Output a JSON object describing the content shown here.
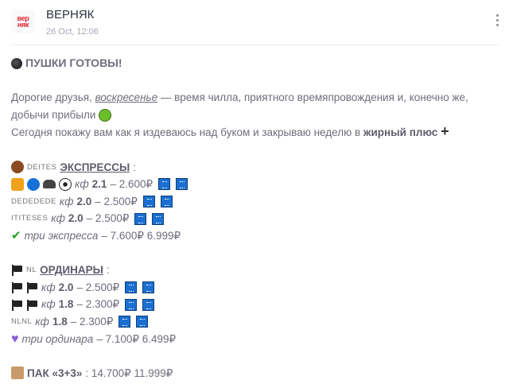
{
  "header": {
    "avatar_text": [
      "вер",
      "няк"
    ],
    "channel_name": "ВЕРНЯК",
    "timestamp": "26 Oct, 12:06"
  },
  "post": {
    "title": "ПУШКИ ГОТОВЫ!",
    "intro": {
      "p1_a": "Дорогие друзья, ",
      "p1_link": "воскресенье",
      "p1_b": " — время чилла, приятного времяпровождения и, конечно же, добычи прибыли",
      "p2_a": "Сегодня покажу вам как я издеваюсь над буком и закрываю неделю в ",
      "p2_bold": "жирный плюс"
    },
    "express": {
      "flag_text": "DEITES",
      "heading": "ЭКСПРЕССЫ",
      "colon": ":",
      "rows": [
        {
          "prefix": "",
          "kf": "кф",
          "odds": "2.1",
          "stake": " – 2.600₽"
        },
        {
          "prefix": "DEDEDEDE",
          "kf": "кф",
          "odds": "2.0",
          "stake": " – 2.500₽"
        },
        {
          "prefix": "ITITESES",
          "kf": "кф",
          "odds": "2.0",
          "stake": " – 2.500₽"
        }
      ],
      "summary": {
        "label": "три экспресса",
        "price": " – 7.600₽ 6.999₽"
      }
    },
    "singles": {
      "flag_text": "NL",
      "heading": "ОРДИНАРЫ",
      "colon": ":",
      "rows": [
        {
          "prefix": "",
          "kf": "кф",
          "odds": "2.0",
          "stake": " – 2.500₽"
        },
        {
          "prefix": "",
          "kf": "кф",
          "odds": "1.8",
          "stake": " – 2.300₽"
        },
        {
          "prefix": "NLNL",
          "kf": "кф",
          "odds": "1.8",
          "stake": " – 2.300₽"
        }
      ],
      "summary": {
        "label": "три ординара",
        "price": " – 7.100₽ 6.499₽"
      }
    },
    "pack": {
      "label": "ПАК «3+3»",
      "price": ": 14.700₽ 11.999₽"
    }
  },
  "icons": [
    "bomb-icon",
    "money-mouth-face-icon",
    "plus-icon",
    "bear-icon",
    "lion-icon",
    "blue-circle-icon",
    "bison-icon",
    "soccer-ball-icon",
    "keycap-1234-icon",
    "check-mark-icon",
    "black-flag-icon",
    "purple-heart-icon",
    "package-icon",
    "more-vertical-icon"
  ],
  "colors": {
    "text": "#6e6e7c",
    "keycap": "#1a6fd0",
    "avatar_red": "#e0242c"
  }
}
